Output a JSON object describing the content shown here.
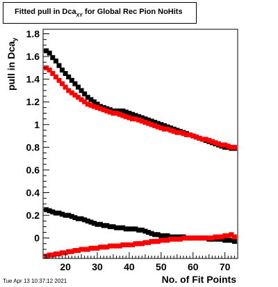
{
  "chart_data": {
    "type": "scatter",
    "title_main": "Fitted pull in Dca",
    "title_sub": "XY",
    "title_rest": " for Global Rec Pion NoHits",
    "ylabel_main": "pull in Dca",
    "ylabel_sub": "y",
    "xlabel": "No. of Fit Points",
    "xlim": [
      13,
      74
    ],
    "ylim": [
      -0.18,
      1.84
    ],
    "x_ticks": [
      20,
      30,
      40,
      50,
      60,
      70
    ],
    "y_ticks": [
      0,
      0.2,
      0.4,
      0.6,
      0.8,
      1,
      1.2,
      1.4,
      1.6,
      1.8
    ],
    "grid": false,
    "series": [
      {
        "color": "#000000",
        "x": [
          14,
          15,
          16,
          17,
          18,
          19,
          20,
          21,
          22,
          23,
          24,
          25,
          26,
          27,
          28,
          29,
          30,
          31,
          32,
          33,
          34,
          35,
          36,
          37,
          38,
          39,
          40,
          41,
          42,
          43,
          44,
          45,
          46,
          47,
          48,
          49,
          50,
          51,
          52,
          53,
          54,
          55,
          56,
          57,
          58,
          59,
          60,
          61,
          62,
          63,
          64,
          65,
          66,
          67,
          68,
          69,
          70,
          71,
          72,
          73
        ],
        "y": [
          1.65,
          1.63,
          1.59,
          1.56,
          1.52,
          1.48,
          1.45,
          1.42,
          1.39,
          1.36,
          1.33,
          1.3,
          1.27,
          1.24,
          1.22,
          1.2,
          1.18,
          1.16,
          1.15,
          1.14,
          1.13,
          1.12,
          1.12,
          1.12,
          1.12,
          1.11,
          1.1,
          1.09,
          1.08,
          1.07,
          1.06,
          1.05,
          1.04,
          1.03,
          1.02,
          1.01,
          1.0,
          0.99,
          0.98,
          0.97,
          0.96,
          0.95,
          0.94,
          0.93,
          0.92,
          0.91,
          0.9,
          0.89,
          0.88,
          0.87,
          0.86,
          0.85,
          0.84,
          0.83,
          0.82,
          0.81,
          0.8,
          0.8,
          0.79,
          0.79
        ]
      },
      {
        "color": "#ff0000",
        "x": [
          14,
          15,
          16,
          17,
          18,
          19,
          20,
          21,
          22,
          23,
          24,
          25,
          26,
          27,
          28,
          29,
          30,
          31,
          32,
          33,
          34,
          35,
          36,
          37,
          38,
          39,
          40,
          41,
          42,
          43,
          44,
          45,
          46,
          47,
          48,
          49,
          50,
          51,
          52,
          53,
          54,
          55,
          56,
          57,
          58,
          59,
          60,
          61,
          62,
          63,
          64,
          65,
          66,
          67,
          68,
          69,
          70,
          71,
          72,
          73
        ],
        "y": [
          1.5,
          1.48,
          1.45,
          1.42,
          1.39,
          1.36,
          1.33,
          1.3,
          1.28,
          1.26,
          1.24,
          1.22,
          1.2,
          1.18,
          1.17,
          1.16,
          1.15,
          1.14,
          1.13,
          1.12,
          1.11,
          1.1,
          1.1,
          1.09,
          1.08,
          1.07,
          1.06,
          1.05,
          1.05,
          1.04,
          1.03,
          1.02,
          1.01,
          1.0,
          0.99,
          0.98,
          0.97,
          0.96,
          0.96,
          0.95,
          0.94,
          0.93,
          0.93,
          0.92,
          0.91,
          0.91,
          0.9,
          0.89,
          0.88,
          0.87,
          0.87,
          0.86,
          0.85,
          0.84,
          0.83,
          0.82,
          0.82,
          0.81,
          0.8,
          0.8
        ]
      },
      {
        "color": "#000000",
        "x": [
          14,
          15,
          16,
          17,
          18,
          19,
          20,
          21,
          22,
          23,
          24,
          25,
          26,
          27,
          28,
          29,
          30,
          31,
          32,
          33,
          34,
          35,
          36,
          37,
          38,
          39,
          40,
          41,
          42,
          43,
          44,
          45,
          46,
          47,
          48,
          49,
          50,
          51,
          52,
          53,
          54,
          55,
          56,
          57,
          58,
          59,
          60,
          61,
          62,
          63,
          64,
          65,
          66,
          67,
          68,
          69,
          70,
          71,
          72,
          73
        ],
        "y": [
          0.25,
          0.24,
          0.23,
          0.22,
          0.22,
          0.21,
          0.2,
          0.2,
          0.19,
          0.18,
          0.17,
          0.17,
          0.16,
          0.15,
          0.14,
          0.13,
          0.12,
          0.12,
          0.11,
          0.11,
          0.1,
          0.1,
          0.09,
          0.09,
          0.09,
          0.08,
          0.08,
          0.08,
          0.08,
          0.07,
          0.07,
          0.06,
          0.05,
          0.04,
          0.03,
          0.03,
          0.02,
          0.02,
          0.02,
          0.01,
          0.01,
          0.01,
          0.01,
          0.01,
          0.0,
          0.0,
          0.0,
          0.0,
          0.0,
          0.0,
          0.0,
          -0.01,
          -0.01,
          -0.01,
          -0.01,
          -0.01,
          -0.02,
          -0.02,
          -0.02,
          -0.03
        ]
      },
      {
        "color": "#ff0000",
        "x": [
          14,
          15,
          16,
          17,
          18,
          19,
          20,
          21,
          22,
          23,
          24,
          25,
          26,
          27,
          28,
          29,
          30,
          31,
          32,
          33,
          34,
          35,
          36,
          37,
          38,
          39,
          40,
          41,
          42,
          43,
          44,
          45,
          46,
          47,
          48,
          49,
          50,
          51,
          52,
          53,
          54,
          55,
          56,
          57,
          58,
          59,
          60,
          61,
          62,
          63,
          64,
          65,
          66,
          67,
          68,
          69,
          70,
          71,
          72,
          73
        ],
        "y": [
          -0.16,
          -0.15,
          -0.15,
          -0.14,
          -0.14,
          -0.13,
          -0.13,
          -0.12,
          -0.12,
          -0.11,
          -0.11,
          -0.1,
          -0.1,
          -0.1,
          -0.09,
          -0.09,
          -0.09,
          -0.08,
          -0.08,
          -0.08,
          -0.07,
          -0.07,
          -0.07,
          -0.07,
          -0.06,
          -0.06,
          -0.06,
          -0.06,
          -0.05,
          -0.05,
          -0.05,
          -0.04,
          -0.04,
          -0.03,
          -0.03,
          -0.03,
          -0.02,
          -0.02,
          -0.02,
          -0.01,
          -0.01,
          -0.01,
          -0.01,
          0.0,
          0.0,
          0.0,
          0.0,
          0.0,
          0.0,
          0.0,
          0.0,
          0.0,
          0.0,
          0.01,
          0.01,
          0.01,
          0.02,
          0.02,
          0.03,
          0.01
        ]
      }
    ]
  },
  "timestamp": "Tue Apr 13 10:37:12 2021"
}
